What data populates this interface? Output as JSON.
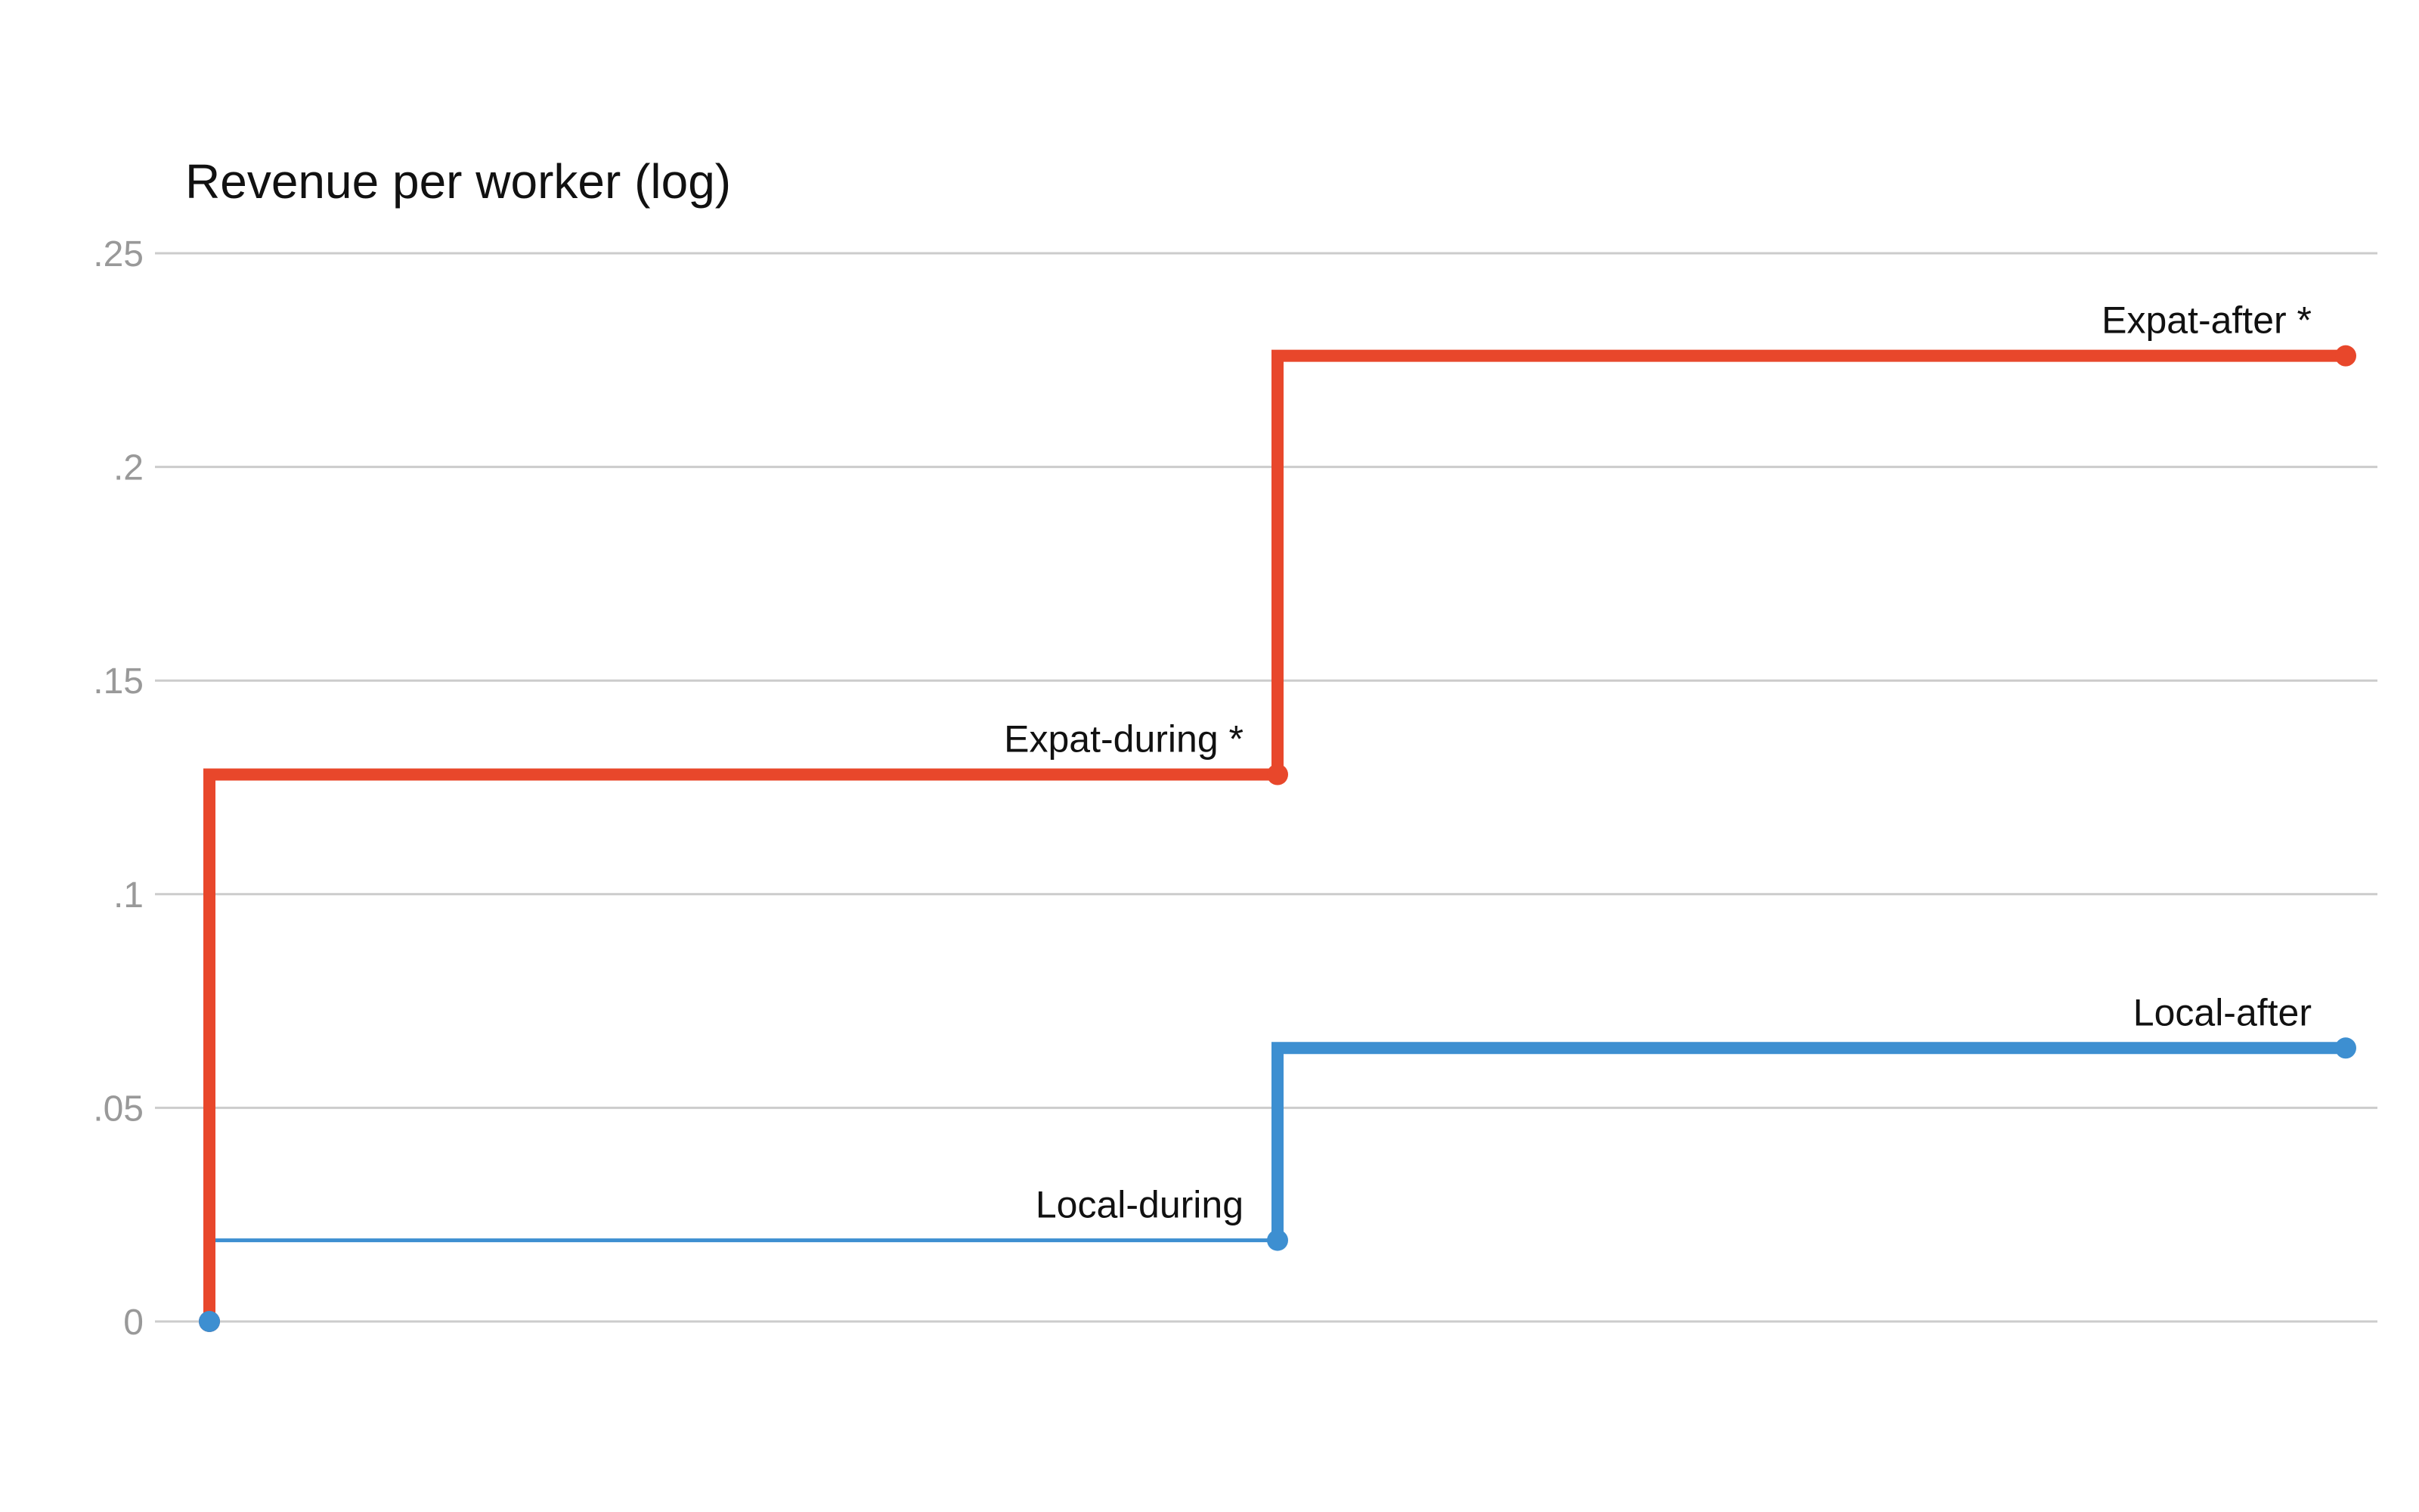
{
  "chart_data": {
    "type": "line",
    "title": "Revenue per worker (log)",
    "xlabel": "",
    "ylabel": "",
    "ylim": [
      0,
      0.25
    ],
    "yticks": [
      {
        "value": 0,
        "label": "0"
      },
      {
        "value": 0.05,
        "label": ".05"
      },
      {
        "value": 0.1,
        "label": ".1"
      },
      {
        "value": 0.15,
        "label": ".15"
      },
      {
        "value": 0.2,
        "label": ".2"
      },
      {
        "value": 0.25,
        "label": ".25"
      }
    ],
    "grid": true,
    "legend": "none",
    "x": [
      0,
      1,
      2
    ],
    "series": [
      {
        "key": "expat",
        "color": "#e8472b",
        "values": [
          0,
          0.128,
          0.226
        ],
        "point_labels": [
          "",
          "Expat-during *",
          "Expat-after *"
        ],
        "thickness": [
          "thick",
          "thick"
        ]
      },
      {
        "key": "local",
        "color": "#3d8fd1",
        "values": [
          0,
          0.019,
          0.064
        ],
        "point_labels": [
          "",
          "Local-during",
          "Local-after"
        ],
        "thickness": [
          "thin",
          "thick"
        ]
      }
    ]
  }
}
